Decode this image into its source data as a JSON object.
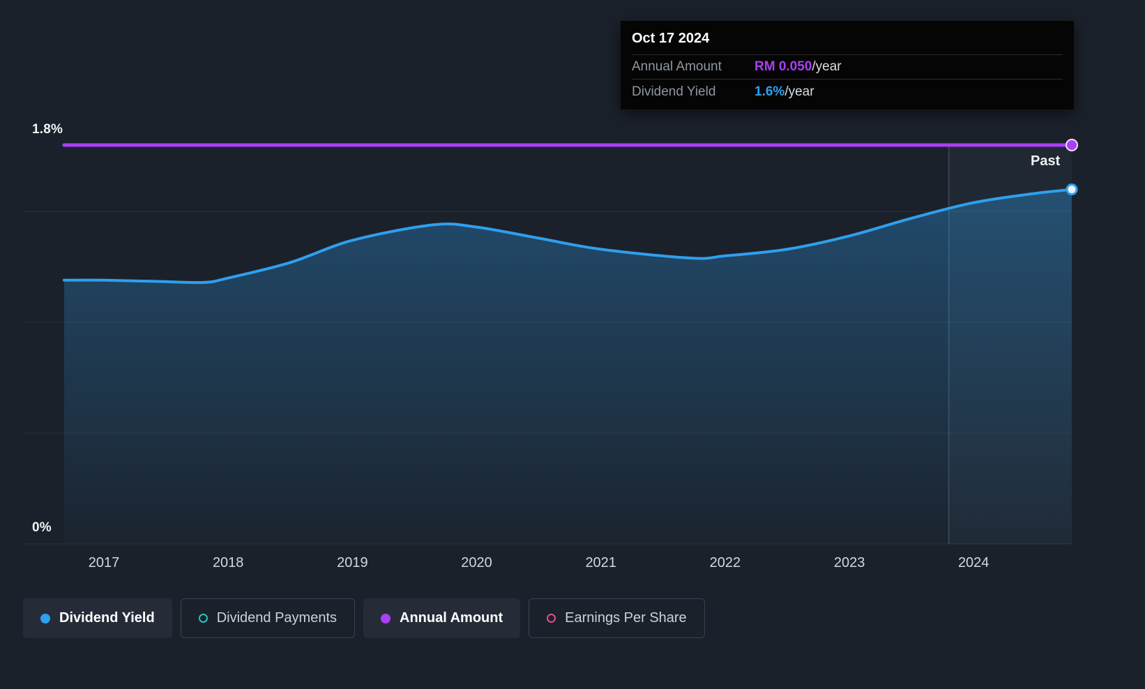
{
  "meta": {
    "background": "#1b212b",
    "accent_blue": "#2f9fee",
    "accent_purple": "#aa3ff5",
    "accent_teal": "#2dc4b6",
    "accent_pink": "#e0508e"
  },
  "tooltip": {
    "date": "Oct 17 2024",
    "rows": [
      {
        "label": "Annual Amount",
        "value": "RM 0.050",
        "suffix": "/year",
        "color": "#aa3ff5"
      },
      {
        "label": "Dividend Yield",
        "value": "1.6%",
        "suffix": "/year",
        "color": "#2f9fee"
      }
    ]
  },
  "axis": {
    "y_top_label": "1.8%",
    "y_bottom_label": "0%",
    "past_label": "Past"
  },
  "legend": [
    {
      "label": "Dividend Yield",
      "color": "#2f9fee",
      "filled": true,
      "active": true
    },
    {
      "label": "Dividend Payments",
      "color": "#2dc4b6",
      "filled": false,
      "active": false
    },
    {
      "label": "Annual Amount",
      "color": "#aa3ff5",
      "filled": true,
      "active": true
    },
    {
      "label": "Earnings Per Share",
      "color": "#e0508e",
      "filled": false,
      "active": false
    }
  ],
  "chart_data": {
    "type": "area",
    "title": "Dividend Yield over time",
    "x_range": [
      2016.68,
      2024.79
    ],
    "y_range": [
      0,
      1.8
    ],
    "y_unit": "%",
    "x_ticks": [
      2017,
      2018,
      2019,
      2020,
      2021,
      2022,
      2023,
      2024
    ],
    "gridlines": [
      0,
      0.5,
      1.0,
      1.5
    ],
    "divider_year": 2023.8,
    "legend_position": "bottom",
    "series": [
      {
        "name": "Dividend Yield",
        "type": "area-line",
        "color": "#2f9fee",
        "points": [
          [
            2016.68,
            1.19
          ],
          [
            2017.0,
            1.19
          ],
          [
            2017.4,
            1.185
          ],
          [
            2017.8,
            1.18
          ],
          [
            2018.0,
            1.2
          ],
          [
            2018.5,
            1.27
          ],
          [
            2019.0,
            1.37
          ],
          [
            2019.65,
            1.44
          ],
          [
            2020.0,
            1.43
          ],
          [
            2020.5,
            1.38
          ],
          [
            2021.0,
            1.33
          ],
          [
            2021.73,
            1.29
          ],
          [
            2022.0,
            1.3
          ],
          [
            2022.5,
            1.33
          ],
          [
            2023.0,
            1.39
          ],
          [
            2023.5,
            1.47
          ],
          [
            2024.0,
            1.54
          ],
          [
            2024.47,
            1.58
          ],
          [
            2024.79,
            1.6
          ]
        ]
      },
      {
        "name": "Annual Amount",
        "type": "line",
        "color": "#aa3ff5",
        "points": [
          [
            2016.68,
            1.8
          ],
          [
            2024.79,
            1.8
          ]
        ]
      }
    ]
  }
}
